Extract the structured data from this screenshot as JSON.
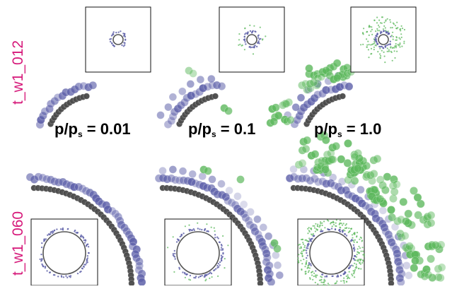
{
  "rows": [
    {
      "label": "t_w1_012",
      "scale": "small"
    },
    {
      "label": "t_w1_060",
      "scale": "large"
    }
  ],
  "pressures": [
    {
      "prefix": "p/p",
      "subscript": "s",
      "suffix": " = 0.01",
      "value": 0.01
    },
    {
      "prefix": "p/p",
      "subscript": "s",
      "suffix": " = 0.1",
      "value": 0.1
    },
    {
      "prefix": "p/p",
      "subscript": "s",
      "suffix": " = 1.0",
      "value": 1.0
    }
  ],
  "colors": {
    "row_label": "#d6197a",
    "pore_wall": "#4a4a4a",
    "adsorbed_layer": "#5b5ea8",
    "condensed_fluid": "#5cb85c"
  }
}
